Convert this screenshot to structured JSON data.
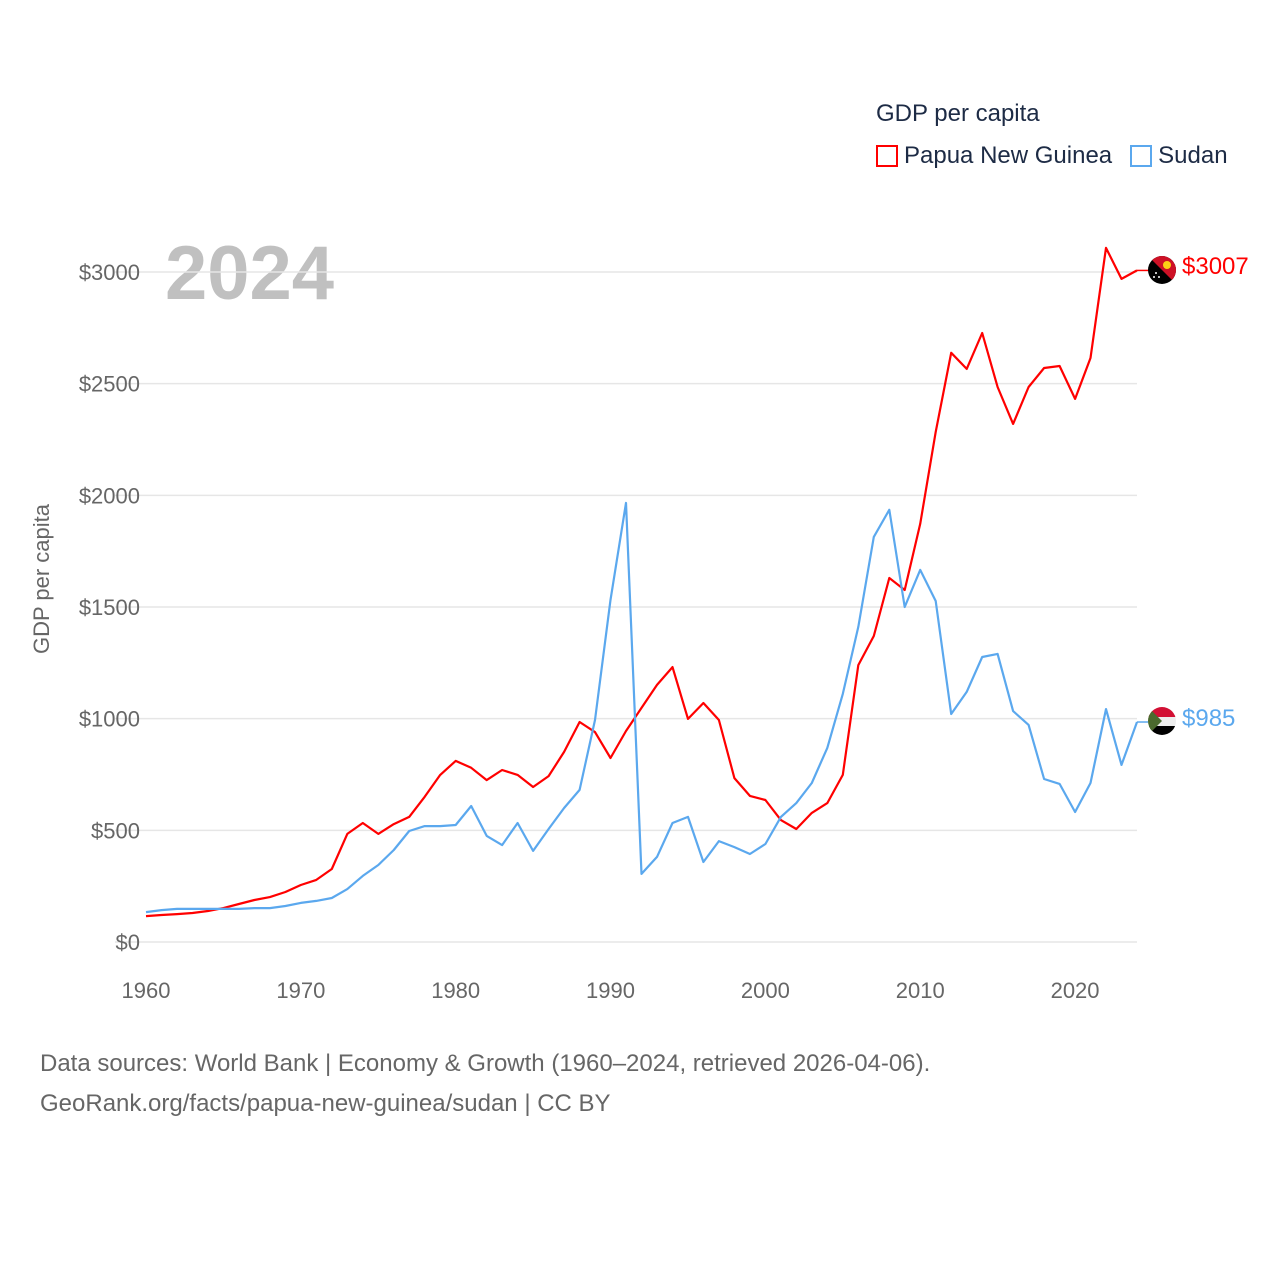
{
  "legend": {
    "title": "GDP per capita",
    "items": [
      {
        "label": "Papua New Guinea",
        "color": "#ff0000"
      },
      {
        "label": "Sudan",
        "color": "#5ba8ee"
      }
    ]
  },
  "year_label": "2024",
  "end_labels": {
    "png": "$3007",
    "sudan": "$985"
  },
  "source": {
    "line1": "Data sources: World Bank | Economy & Growth (1960–2024, retrieved 2026-04-06).",
    "line2": "GeoRank.org/facts/papua-new-guinea/sudan | CC BY"
  },
  "chart_data": {
    "type": "line",
    "title": "GDP per capita",
    "xlabel": "",
    "ylabel": "GDP per capita",
    "xlim": [
      1960,
      2024
    ],
    "ylim": [
      0,
      3000
    ],
    "x_ticks": [
      "1960",
      "1970",
      "1980",
      "1990",
      "2000",
      "2010",
      "2020"
    ],
    "y_ticks": [
      "$0",
      "$500",
      "$1000",
      "$1500",
      "$2000",
      "$2500",
      "$3000"
    ],
    "grid": true,
    "legend_position": "top-right",
    "x": [
      1960,
      1961,
      1962,
      1963,
      1964,
      1965,
      1966,
      1967,
      1968,
      1969,
      1970,
      1971,
      1972,
      1973,
      1974,
      1975,
      1976,
      1977,
      1978,
      1979,
      1980,
      1981,
      1982,
      1983,
      1984,
      1985,
      1986,
      1987,
      1988,
      1989,
      1990,
      1991,
      1992,
      1993,
      1994,
      1995,
      1996,
      1997,
      1998,
      1999,
      2000,
      2001,
      2002,
      2003,
      2004,
      2005,
      2006,
      2007,
      2008,
      2009,
      2010,
      2011,
      2012,
      2013,
      2014,
      2015,
      2016,
      2017,
      2018,
      2019,
      2020,
      2021,
      2022,
      2023,
      2024
    ],
    "series": [
      {
        "name": "Papua New Guinea",
        "color": "#ff0000",
        "values": [
          116,
          121,
          125,
          130,
          139,
          152,
          170,
          188,
          201,
          224,
          255,
          278,
          327,
          484,
          533,
          484,
          528,
          560,
          650,
          748,
          811,
          780,
          725,
          770,
          748,
          694,
          743,
          851,
          985,
          940,
          824,
          945,
          1048,
          1151,
          1231,
          999,
          1070,
          994,
          734,
          654,
          636,
          546,
          506,
          578,
          622,
          748,
          1240,
          1370,
          1630,
          1576,
          1872,
          2284,
          2638,
          2566,
          2727,
          2485,
          2320,
          2485,
          2570,
          2579,
          2432,
          2615,
          3108,
          2969,
          3007
        ]
      },
      {
        "name": "Sudan",
        "color": "#5ba8ee",
        "values": [
          134,
          143,
          148,
          148,
          148,
          148,
          148,
          152,
          152,
          161,
          175,
          184,
          197,
          237,
          296,
          345,
          412,
          497,
          519,
          519,
          524,
          609,
          475,
          434,
          533,
          408,
          506,
          600,
          681,
          994,
          1532,
          1966,
          305,
          381,
          533,
          560,
          358,
          452,
          425,
          394,
          439,
          560,
          622,
          712,
          869,
          1111,
          1411,
          1814,
          1935,
          1500,
          1666,
          1527,
          1021,
          1120,
          1276,
          1290,
          1034,
          972,
          730,
          708,
          582,
          712,
          1043,
          793,
          985
        ]
      }
    ]
  }
}
